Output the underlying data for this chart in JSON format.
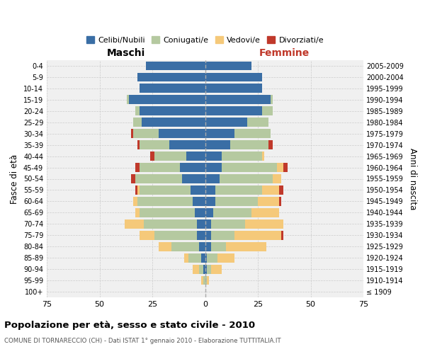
{
  "age_groups": [
    "100+",
    "95-99",
    "90-94",
    "85-89",
    "80-84",
    "75-79",
    "70-74",
    "65-69",
    "60-64",
    "55-59",
    "50-54",
    "45-49",
    "40-44",
    "35-39",
    "30-34",
    "25-29",
    "20-24",
    "15-19",
    "10-14",
    "5-9",
    "0-4"
  ],
  "birth_years": [
    "≤ 1909",
    "1910-1914",
    "1915-1919",
    "1920-1924",
    "1925-1929",
    "1930-1934",
    "1935-1939",
    "1940-1944",
    "1945-1949",
    "1950-1954",
    "1955-1959",
    "1960-1964",
    "1965-1969",
    "1970-1974",
    "1975-1979",
    "1980-1984",
    "1985-1989",
    "1990-1994",
    "1995-1999",
    "2000-2004",
    "2005-2009"
  ],
  "male": {
    "celibi": [
      0,
      0,
      1,
      2,
      3,
      4,
      4,
      5,
      6,
      7,
      11,
      12,
      9,
      17,
      22,
      30,
      31,
      36,
      31,
      32,
      28
    ],
    "coniugati": [
      0,
      1,
      2,
      6,
      13,
      20,
      25,
      26,
      26,
      24,
      22,
      19,
      15,
      14,
      12,
      4,
      2,
      1,
      0,
      0,
      0
    ],
    "vedovi": [
      0,
      1,
      3,
      2,
      6,
      7,
      9,
      2,
      2,
      1,
      0,
      0,
      0,
      0,
      0,
      0,
      0,
      0,
      0,
      0,
      0
    ],
    "divorziati": [
      0,
      0,
      0,
      0,
      0,
      0,
      0,
      0,
      0,
      1,
      2,
      2,
      2,
      1,
      1,
      0,
      0,
      0,
      0,
      0,
      0
    ]
  },
  "female": {
    "nubili": [
      0,
      0,
      1,
      1,
      3,
      3,
      3,
      4,
      5,
      5,
      7,
      8,
      8,
      12,
      14,
      20,
      27,
      31,
      27,
      27,
      22
    ],
    "coniugate": [
      0,
      1,
      2,
      5,
      7,
      11,
      16,
      18,
      20,
      22,
      25,
      26,
      19,
      18,
      17,
      10,
      5,
      1,
      0,
      0,
      0
    ],
    "vedove": [
      0,
      1,
      5,
      8,
      19,
      22,
      18,
      13,
      10,
      8,
      4,
      3,
      1,
      0,
      0,
      0,
      0,
      0,
      0,
      0,
      0
    ],
    "divorziate": [
      0,
      0,
      0,
      0,
      0,
      1,
      0,
      0,
      1,
      2,
      0,
      2,
      0,
      2,
      0,
      0,
      0,
      0,
      0,
      0,
      0
    ]
  },
  "colors": {
    "celibi": "#3a6ea5",
    "coniugati": "#b5c9a0",
    "vedovi": "#f5c97a",
    "divorziati": "#c0392b"
  },
  "xlim": 75,
  "title": "Popolazione per età, sesso e stato civile - 2010",
  "subtitle": "COMUNE DI TORNARECCIO (CH) - Dati ISTAT 1° gennaio 2010 - Elaborazione TUTTITALIA.IT",
  "ylabel_left": "Fasce di età",
  "ylabel_right": "Anni di nascita",
  "xlabel_left": "Maschi",
  "xlabel_right": "Femmine"
}
